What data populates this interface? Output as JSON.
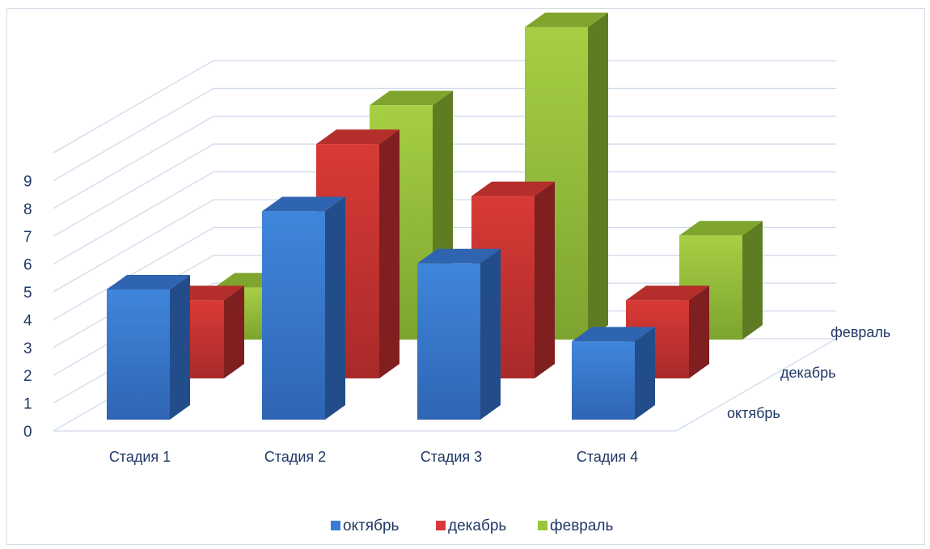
{
  "chart_data": {
    "type": "bar",
    "subtype": "3d-column",
    "categories": [
      "Стадия 1",
      "Стадия 2",
      "Стадия 3",
      "Стадия 4"
    ],
    "series": [
      {
        "name": "октябрь",
        "values": [
          5,
          8,
          6,
          3
        ],
        "color": "#3a7bd5"
      },
      {
        "name": "декабрь",
        "values": [
          3,
          9,
          7,
          3
        ],
        "color": "#d9383a"
      },
      {
        "name": "февраль",
        "values": [
          2,
          9,
          12,
          4
        ],
        "color": "#9bc63b"
      }
    ],
    "y_ticks": [
      "0",
      "1",
      "2",
      "3",
      "4",
      "5",
      "6",
      "7",
      "8",
      "9"
    ],
    "ylim": [
      0,
      12
    ],
    "depth_labels": [
      "октябрь",
      "декабрь",
      "февраль"
    ],
    "grid": true,
    "legend_position": "bottom"
  }
}
